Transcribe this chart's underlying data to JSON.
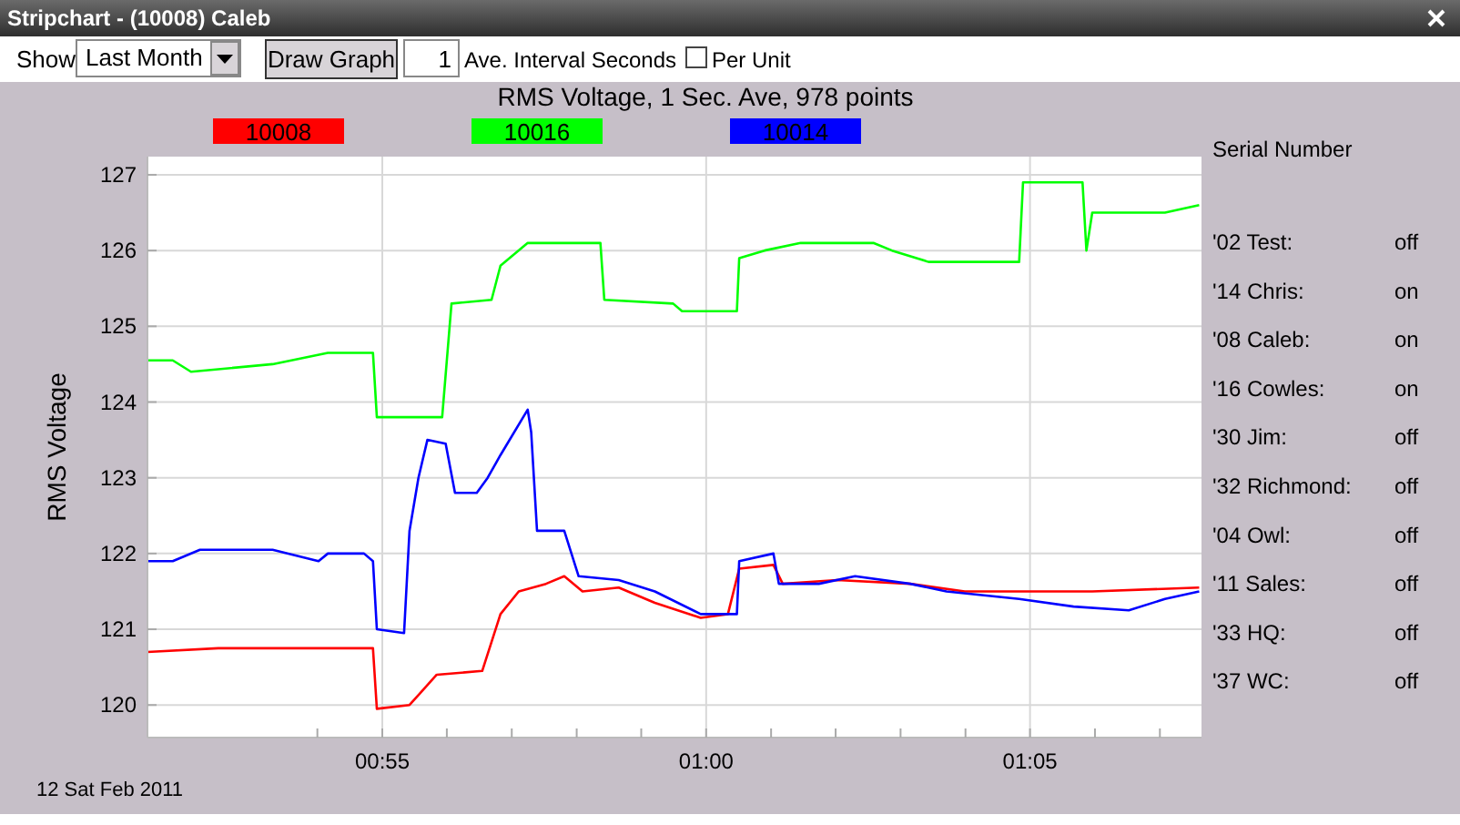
{
  "chart_data": {
    "type": "line",
    "title": "RMS Voltage, 1 Sec. Ave, 978 points",
    "ylabel": "RMS Voltage",
    "xlim": [
      0.8563,
      1.1274
    ],
    "ylim": [
      119.57,
      127.24
    ],
    "xticks": [
      {
        "value": 0.9,
        "label": null
      },
      {
        "value": 0.9167,
        "label": "00:55"
      },
      {
        "value": 0.9333,
        "label": null
      },
      {
        "value": 0.95,
        "label": null
      },
      {
        "value": 0.9667,
        "label": null
      },
      {
        "value": 0.9833,
        "label": null
      },
      {
        "value": 1.0,
        "label": "01:00"
      },
      {
        "value": 1.0167,
        "label": null
      },
      {
        "value": 1.0333,
        "label": null
      },
      {
        "value": 1.05,
        "label": null
      },
      {
        "value": 1.0667,
        "label": null
      },
      {
        "value": 1.0833,
        "label": "01:05"
      },
      {
        "value": 1.1,
        "label": null
      },
      {
        "value": 1.1167,
        "label": null
      }
    ],
    "yticks": [
      120,
      121,
      122,
      123,
      124,
      125,
      126,
      127
    ],
    "grid": true,
    "legend": "top",
    "series": [
      {
        "name": "10008",
        "color": "#ff0000",
        "x": [
          0.8563,
          0.8745,
          0.8933,
          0.9143,
          0.9153,
          0.9237,
          0.9307,
          0.9424,
          0.9471,
          0.9518,
          0.9588,
          0.9635,
          0.9682,
          0.9775,
          0.9868,
          0.9986,
          1.0056,
          1.0085,
          1.0173,
          1.0197,
          1.0337,
          1.0525,
          1.0665,
          1.0852,
          1.0993,
          1.1268
        ],
        "values": [
          120.7,
          120.75,
          120.75,
          120.75,
          119.95,
          120.0,
          120.4,
          120.45,
          121.2,
          121.5,
          121.6,
          121.7,
          121.5,
          121.55,
          121.35,
          121.15,
          121.2,
          121.8,
          121.85,
          121.6,
          121.65,
          121.6,
          121.5,
          121.5,
          121.5,
          121.55
        ]
      },
      {
        "name": "10016",
        "color": "#00ff00",
        "x": [
          0.8563,
          0.8628,
          0.8675,
          0.8885,
          0.9027,
          0.9143,
          0.9153,
          0.9321,
          0.9345,
          0.9448,
          0.9471,
          0.9541,
          0.9672,
          0.9728,
          0.9738,
          0.9915,
          0.9938,
          1.0079,
          1.0085,
          1.015,
          1.0243,
          1.043,
          1.0478,
          1.0572,
          1.0805,
          1.0815,
          1.0968,
          1.0978,
          1.0993,
          1.118,
          1.1268
        ],
        "values": [
          124.55,
          124.55,
          124.4,
          124.5,
          124.65,
          124.65,
          123.8,
          123.8,
          125.3,
          125.35,
          125.8,
          126.1,
          126.1,
          126.1,
          125.35,
          125.3,
          125.2,
          125.2,
          125.9,
          126.0,
          126.1,
          126.1,
          126.0,
          125.85,
          125.85,
          126.9,
          126.9,
          126.0,
          126.5,
          126.5,
          126.6
        ]
      },
      {
        "name": "10014",
        "color": "#0000ff",
        "x": [
          0.8563,
          0.8628,
          0.8698,
          0.8885,
          0.9003,
          0.9027,
          0.912,
          0.9143,
          0.9153,
          0.9223,
          0.9237,
          0.926,
          0.9283,
          0.933,
          0.9354,
          0.941,
          0.9438,
          0.9471,
          0.9541,
          0.955,
          0.9565,
          0.9635,
          0.9672,
          0.9775,
          0.9868,
          0.9986,
          1.0079,
          1.0085,
          1.0173,
          1.0187,
          1.029,
          1.0383,
          1.0525,
          1.0618,
          1.0805,
          1.0945,
          1.1087,
          1.118,
          1.1268
        ],
        "values": [
          121.9,
          121.9,
          122.05,
          122.05,
          121.9,
          122.0,
          122.0,
          121.9,
          121.0,
          120.95,
          122.3,
          123.0,
          123.5,
          123.45,
          122.8,
          122.8,
          123.0,
          123.3,
          123.9,
          123.6,
          122.3,
          122.3,
          121.7,
          121.65,
          121.5,
          121.2,
          121.2,
          121.9,
          122.0,
          121.6,
          121.6,
          121.7,
          121.6,
          121.5,
          121.4,
          121.3,
          121.25,
          121.4,
          121.5
        ]
      }
    ],
    "annotations": [
      "Stripchart - (10008) Caleb",
      "Show",
      "Last Month",
      "Draw Graph",
      "1",
      "Ave. Interval Seconds",
      "Per Unit",
      "12 Sat Feb 2011",
      "Serial Number",
      "'02 Test:",
      "off",
      "'14 Chris:",
      "on",
      "'08 Caleb:",
      "on",
      "'16 Cowles:",
      "on",
      "'30 Jim:",
      "off",
      "'32 Richmond:",
      "off",
      "'04 Owl:",
      "off",
      "'11 Sales:",
      "off",
      "'33 HQ:",
      "off",
      "'37 WC:",
      "off"
    ]
  }
}
